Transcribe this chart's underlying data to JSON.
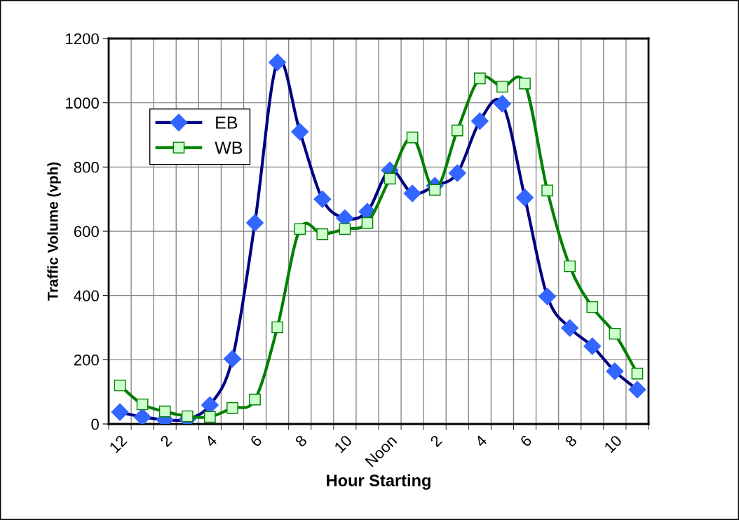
{
  "chart_data": {
    "type": "line",
    "xlabel": "Hour Starting",
    "ylabel": "Traffic Volume (vph)",
    "categories": [
      "12",
      null,
      "2",
      null,
      "4",
      null,
      "6",
      null,
      "8",
      null,
      "10",
      null,
      "Noon",
      null,
      "2",
      null,
      "4",
      null,
      "6",
      null,
      "8",
      null,
      "10",
      null
    ],
    "series": [
      {
        "name": "EB",
        "color": "#000080",
        "marker": "diamond",
        "values": [
          37,
          22,
          13,
          15,
          59,
          203,
          626,
          1126,
          910,
          700,
          641,
          661,
          790,
          718,
          742,
          781,
          943,
          997,
          705,
          397,
          299,
          242,
          164,
          107
        ]
      },
      {
        "name": "WB",
        "color": "#008000",
        "marker": "square",
        "values": [
          120,
          61,
          39,
          24,
          22,
          50,
          76,
          301,
          607,
          591,
          607,
          626,
          764,
          892,
          729,
          914,
          1076,
          1050,
          1060,
          727,
          491,
          364,
          281,
          157
        ]
      }
    ],
    "ylim": [
      0,
      1200
    ],
    "yticks": [
      0,
      200,
      400,
      600,
      800,
      1000,
      1200
    ],
    "grid": true,
    "legend": "top left",
    "line_style": "solid"
  }
}
